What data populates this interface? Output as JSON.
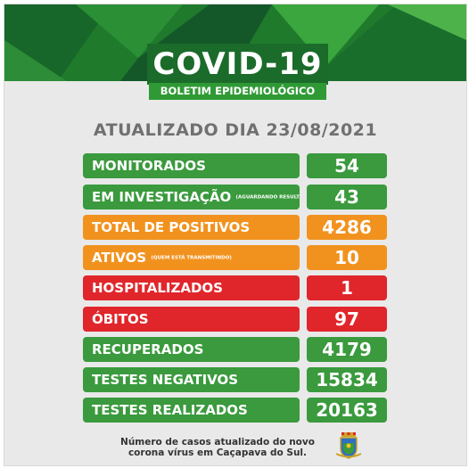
{
  "header": {
    "title": "COVID-19",
    "subtitle": "BOLETIM EPIDEMIOLÓGICO"
  },
  "updated": "ATUALIZADO DIA 23/08/2021",
  "rows": [
    {
      "label": "MONITORADOS",
      "note": "",
      "value": "54",
      "color": "#3a9a3d"
    },
    {
      "label": "EM INVESTIGAÇÃO",
      "note": "(AGUARDANDO RESULTADO)",
      "value": "43",
      "color": "#3a9a3d"
    },
    {
      "label": "TOTAL DE POSITIVOS",
      "note": "",
      "value": "4286",
      "color": "#f2921e"
    },
    {
      "label": "ATIVOS",
      "note": "(QUEM ESTÁ TRANSMITINDO)",
      "value": "10",
      "color": "#f2921e"
    },
    {
      "label": "HOSPITALIZADOS",
      "note": "",
      "value": "1",
      "color": "#e0262b"
    },
    {
      "label": "ÓBITOS",
      "note": "",
      "value": "97",
      "color": "#e0262b"
    },
    {
      "label": "RECUPERADOS",
      "note": "",
      "value": "4179",
      "color": "#3a9a3d"
    },
    {
      "label": "TESTES NEGATIVOS",
      "note": "",
      "value": "15834",
      "color": "#3a9a3d"
    },
    {
      "label": "TESTES REALIZADOS",
      "note": "",
      "value": "20163",
      "color": "#3a9a3d"
    }
  ],
  "footer": {
    "line1": "Número de casos atualizado do novo",
    "line2": "corona vírus em Caçapava do Sul."
  },
  "icons": {
    "crest": "municipal-crest-icon"
  }
}
